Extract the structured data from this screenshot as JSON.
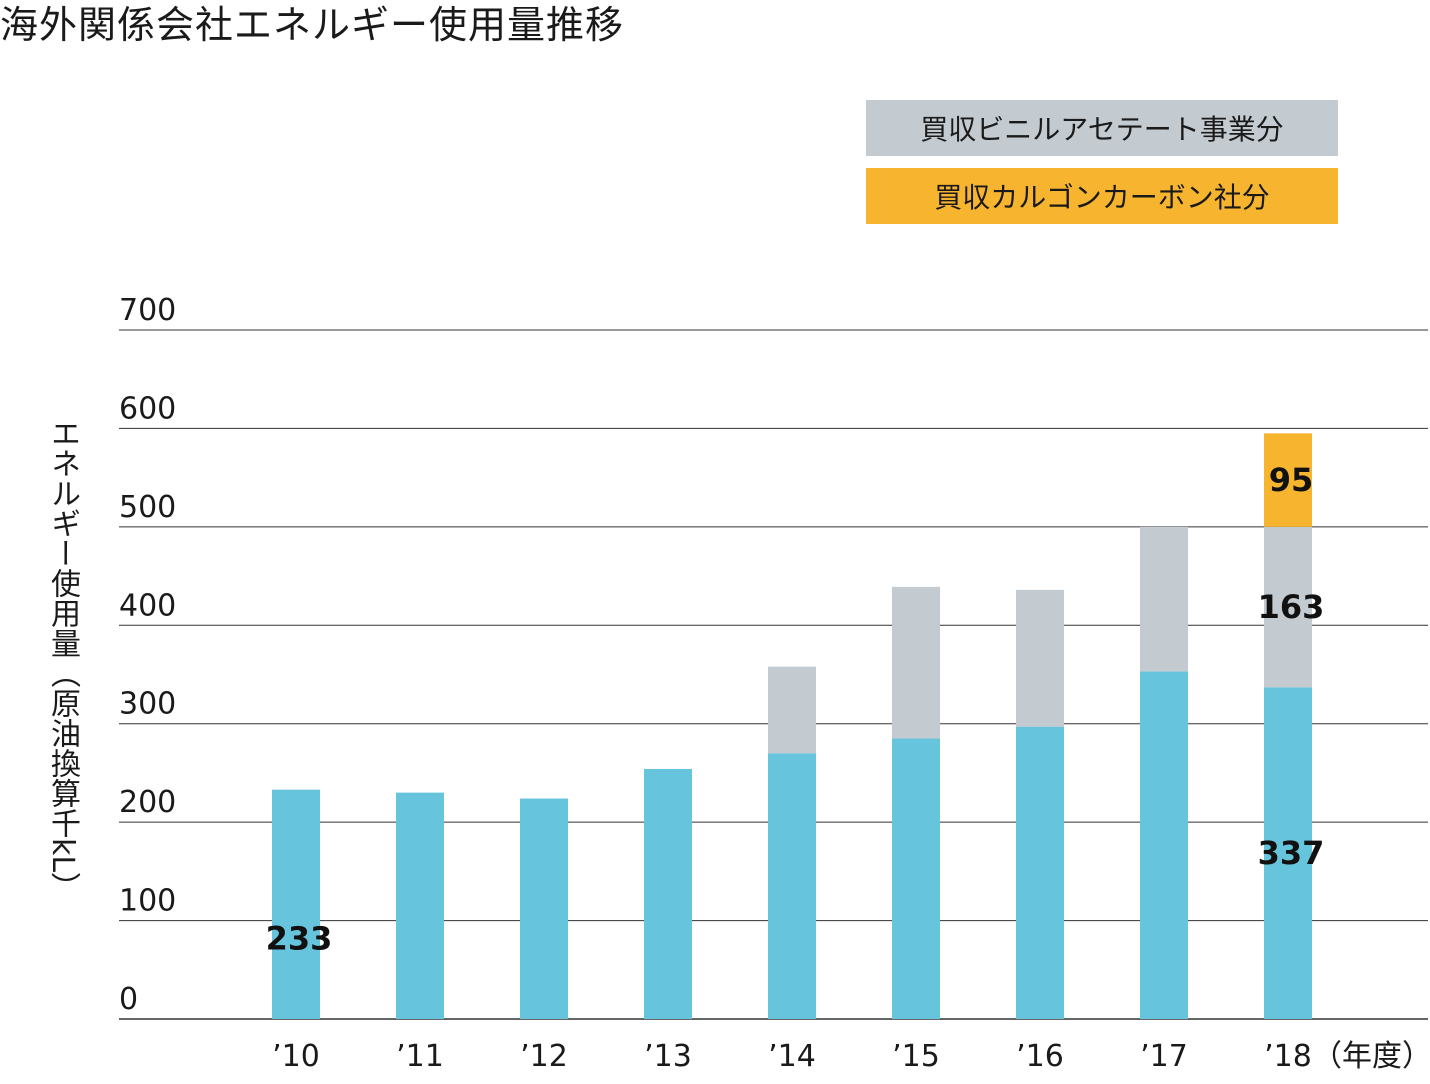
{
  "title": "海外関係会社エネルギー使用量推移",
  "colors": {
    "base": "#66C4DD",
    "vinyl_acetate": "#C3CAD0",
    "calgon_carbon": "#F7B52F",
    "gridline": "#333333",
    "text": "#1a1a1a"
  },
  "legend": [
    {
      "label": "買収ビニルアセテート事業分",
      "color": "#C3CAD0"
    },
    {
      "label": "買収カルゴンカーボン社分",
      "color": "#F7B52F"
    }
  ],
  "chart_data": {
    "type": "bar",
    "stacked": true,
    "title": "海外関係会社エネルギー使用量推移",
    "ylabel": "エネルギー使用量（原油換算千kL）",
    "xlabel": "（年度）",
    "ylim": [
      0,
      700
    ],
    "yticks": [
      "0",
      "100",
      "200",
      "300",
      "400",
      "500",
      "600",
      "700"
    ],
    "grid": true,
    "legend_position": "top-right",
    "categories": [
      "’10",
      "’11",
      "’12",
      "’13",
      "’14",
      "’15",
      "’16",
      "’17",
      "’18"
    ],
    "series": [
      {
        "values": [
          233,
          230,
          224,
          254,
          270,
          285,
          297,
          353,
          337
        ]
      },
      {
        "name": "買収ビニルアセテート事業分",
        "values": [
          0,
          0,
          0,
          0,
          88,
          154,
          139,
          147,
          163
        ]
      },
      {
        "name": "買収カルゴンカーボン社分",
        "values": [
          0,
          0,
          0,
          0,
          0,
          0,
          0,
          0,
          95
        ]
      }
    ],
    "data_labels": [
      {
        "category_index": 0,
        "series_index": 0,
        "text": "233"
      },
      {
        "category_index": 8,
        "series_index": 0,
        "text": "337"
      },
      {
        "category_index": 8,
        "series_index": 1,
        "text": "163"
      },
      {
        "category_index": 8,
        "series_index": 2,
        "text": "95"
      }
    ]
  }
}
